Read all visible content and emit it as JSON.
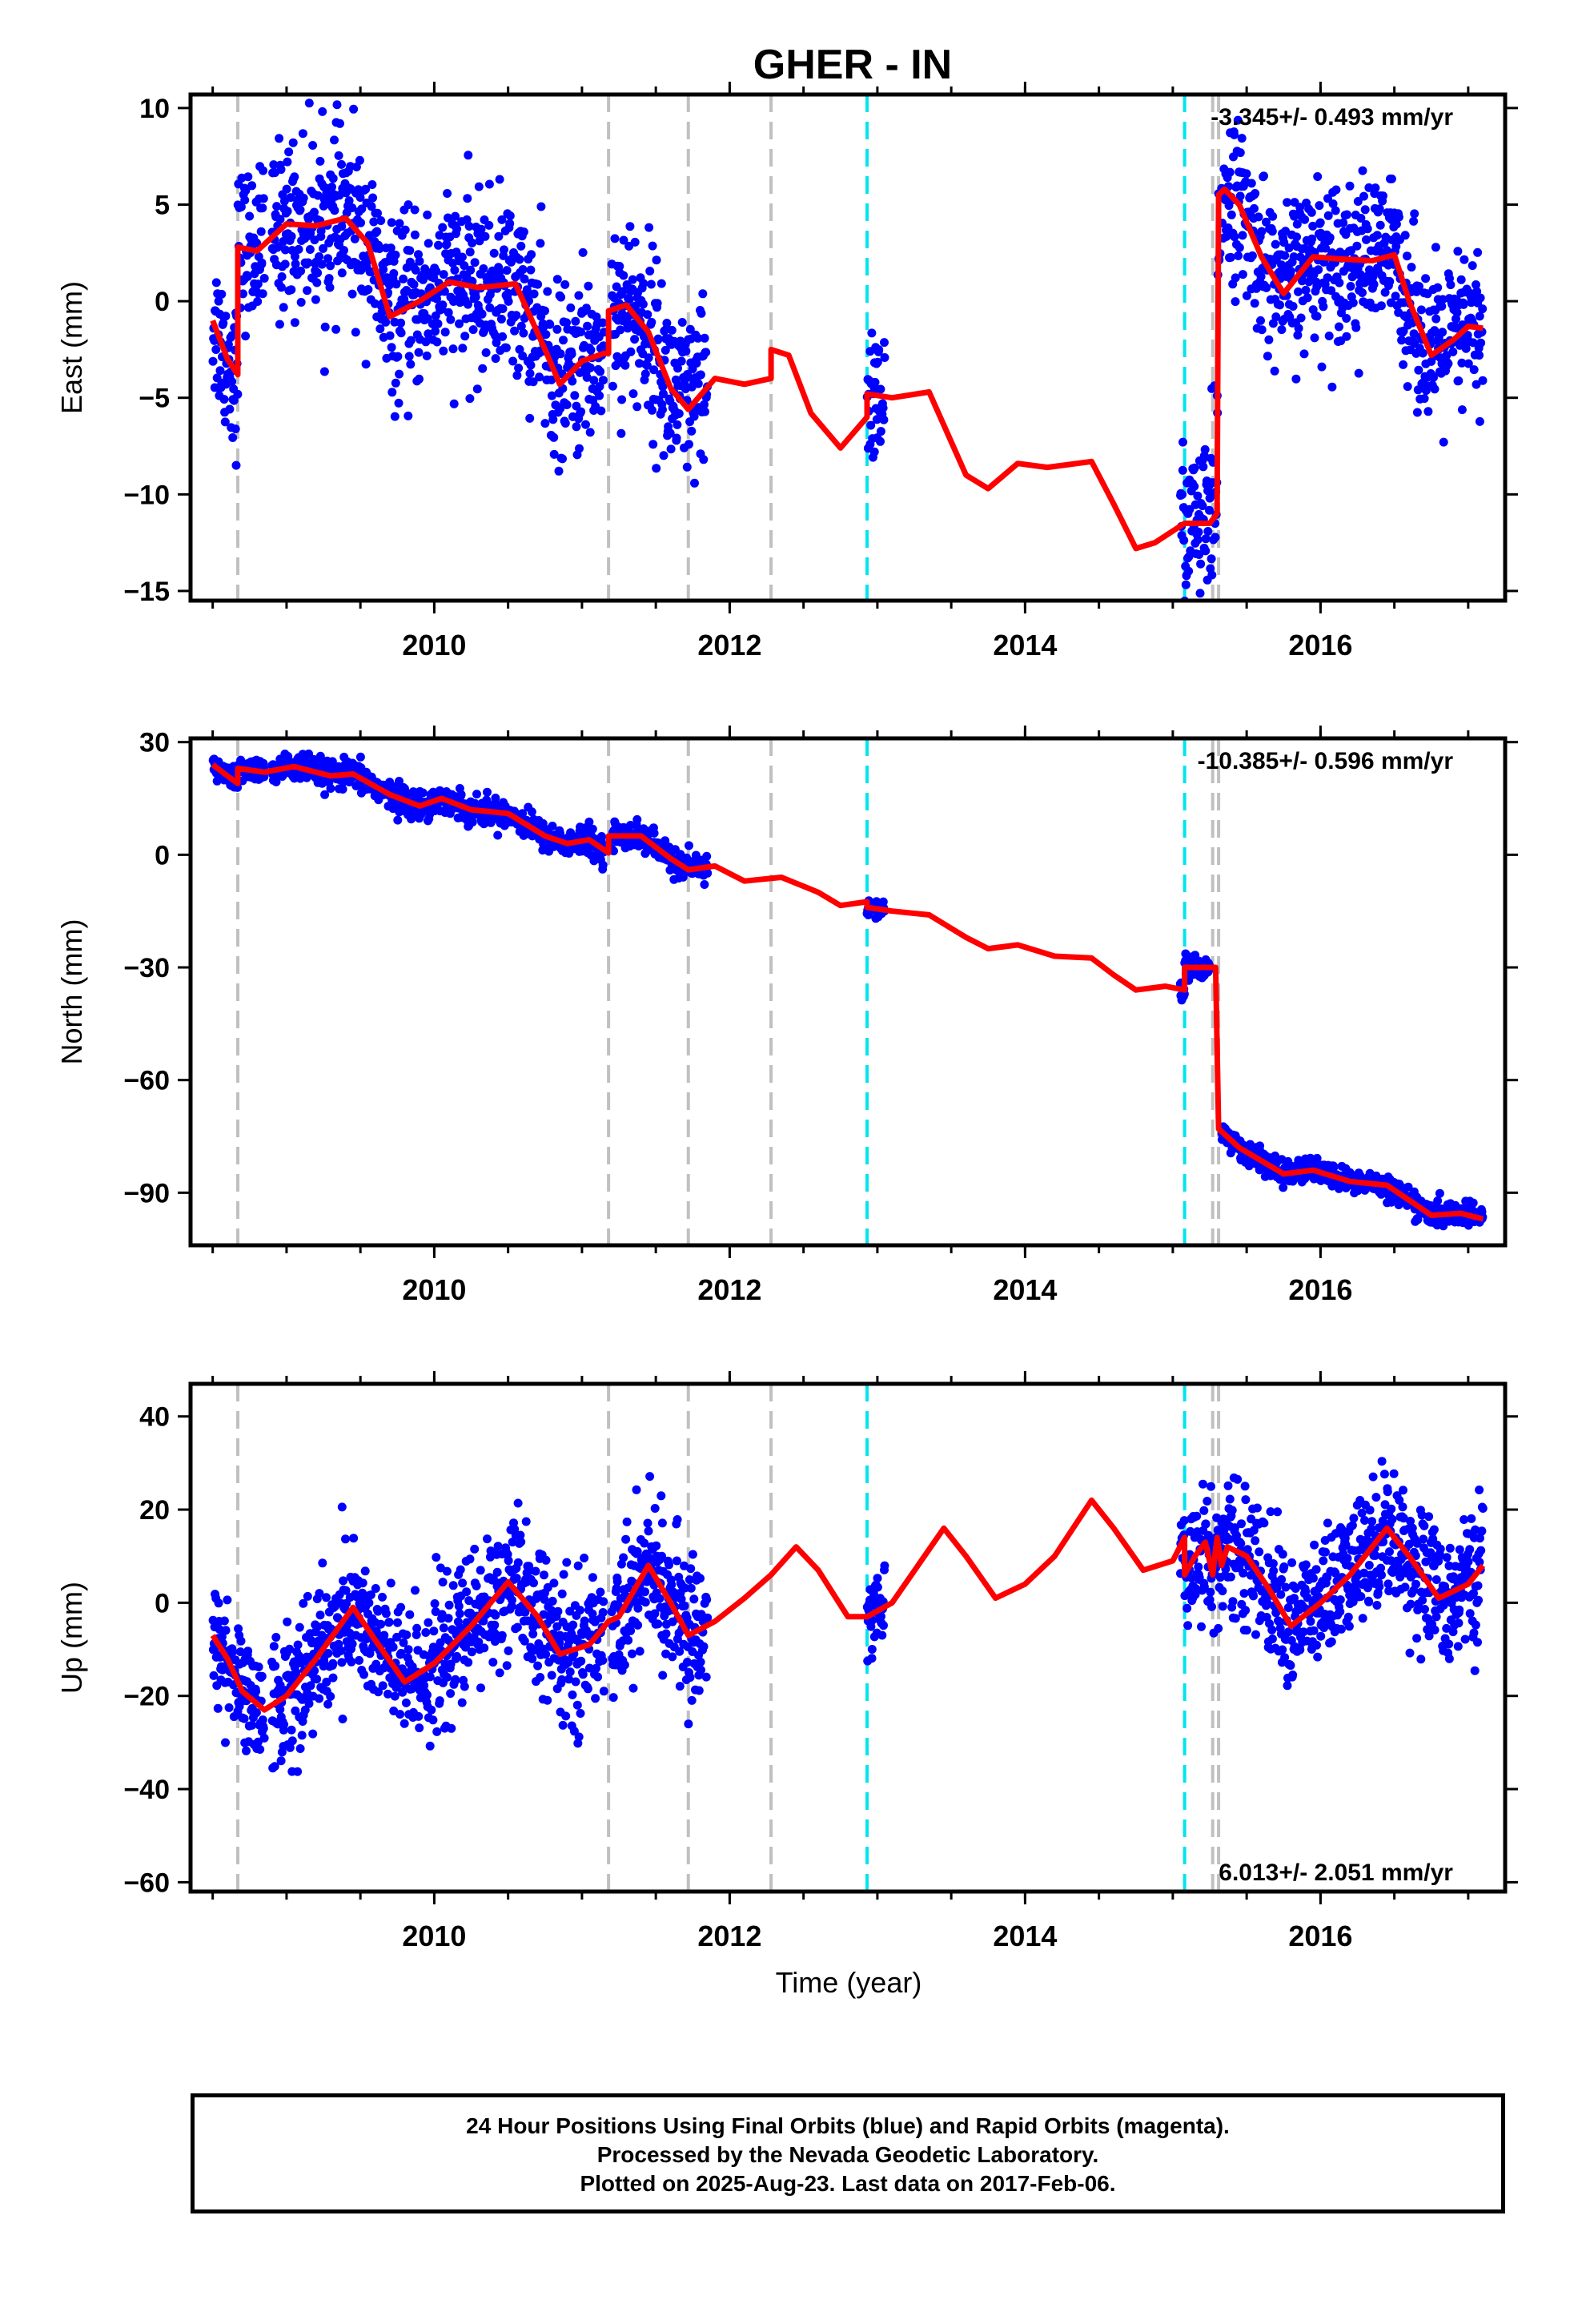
{
  "title": "GHER - IN",
  "xlabel": "Time (year)",
  "footer": {
    "line1": "24 Hour Positions Using Final Orbits (blue) and Rapid Orbits (magenta).",
    "line2": "Processed by the Nevada Geodetic Laboratory.",
    "line3": "Plotted on 2025-Aug-23. Last data on 2017-Feb-06."
  },
  "colors": {
    "points": "#0000ff",
    "model": "#ff0000",
    "equipment_change": "#c0c0c0",
    "earthquake": "#00e5ee"
  },
  "chart_data": [
    {
      "type": "scatter",
      "ylabel": "East (mm)",
      "rate_label": "-3.345+/- 0.493 mm/yr",
      "rate_position": "top-right",
      "xlim": [
        2008.35,
        2017.25
      ],
      "ylim": [
        -15.5,
        10.7
      ],
      "yticks": [
        10,
        5,
        0,
        -5,
        -10,
        -15
      ],
      "xticks": [
        2010,
        2012,
        2014,
        2016
      ],
      "model": [
        [
          2008.5,
          -1.0
        ],
        [
          2008.6,
          -3.0
        ],
        [
          2008.67,
          -3.8
        ],
        [
          2008.67,
          2.8
        ],
        [
          2008.8,
          2.6
        ],
        [
          2009.0,
          4.0
        ],
        [
          2009.2,
          3.9
        ],
        [
          2009.4,
          4.3
        ],
        [
          2009.55,
          3.0
        ],
        [
          2009.7,
          -0.8
        ],
        [
          2009.9,
          0.0
        ],
        [
          2010.1,
          1.0
        ],
        [
          2010.3,
          0.7
        ],
        [
          2010.55,
          0.9
        ],
        [
          2010.75,
          -2.5
        ],
        [
          2010.85,
          -4.3
        ],
        [
          2011.0,
          -3.1
        ],
        [
          2011.15,
          -2.7
        ],
        [
          2011.18,
          -2.7
        ],
        [
          2011.18,
          -0.5
        ],
        [
          2011.3,
          -0.2
        ],
        [
          2011.45,
          -1.6
        ],
        [
          2011.6,
          -4.5
        ],
        [
          2011.72,
          -5.6
        ],
        [
          2011.9,
          -4.0
        ],
        [
          2012.1,
          -4.3
        ],
        [
          2012.28,
          -4.0
        ],
        [
          2012.28,
          -2.5
        ],
        [
          2012.4,
          -2.8
        ],
        [
          2012.55,
          -5.8
        ],
        [
          2012.75,
          -7.6
        ],
        [
          2012.93,
          -6.0
        ],
        [
          2012.93,
          -4.8
        ],
        [
          2013.1,
          -5.0
        ],
        [
          2013.35,
          -4.7
        ],
        [
          2013.6,
          -9.0
        ],
        [
          2013.75,
          -9.7
        ],
        [
          2013.95,
          -8.4
        ],
        [
          2014.15,
          -8.6
        ],
        [
          2014.45,
          -8.3
        ],
        [
          2014.6,
          -10.5
        ],
        [
          2014.75,
          -12.8
        ],
        [
          2014.88,
          -12.5
        ],
        [
          2015.08,
          -11.5
        ],
        [
          2015.25,
          -11.5
        ],
        [
          2015.3,
          -11.0
        ],
        [
          2015.31,
          5.5
        ],
        [
          2015.35,
          5.8
        ],
        [
          2015.45,
          5.0
        ],
        [
          2015.6,
          2.3
        ],
        [
          2015.75,
          0.4
        ],
        [
          2015.95,
          2.3
        ],
        [
          2016.1,
          2.2
        ],
        [
          2016.35,
          2.1
        ],
        [
          2016.5,
          2.4
        ],
        [
          2016.6,
          0.0
        ],
        [
          2016.75,
          -2.8
        ],
        [
          2016.9,
          -2.0
        ],
        [
          2017.0,
          -1.3
        ],
        [
          2017.1,
          -1.4
        ]
      ],
      "segments": [
        [
          2008.5,
          2008.85,
          2.0
        ],
        [
          2008.9,
          2011.15,
          2.2
        ],
        [
          2011.2,
          2011.85,
          2.3
        ],
        [
          2012.93,
          2013.05,
          2.0
        ],
        [
          2015.05,
          2015.25,
          2.0
        ],
        [
          2015.25,
          2015.32,
          3.0
        ],
        [
          2015.33,
          2017.1,
          2.0
        ]
      ],
      "rapid_points": [],
      "equipment_changes": [
        2008.67,
        2011.18,
        2011.72,
        2012.28,
        2015.27,
        2015.31
      ],
      "earthquakes": [
        2012.93,
        2015.08
      ]
    },
    {
      "type": "scatter",
      "ylabel": "North (mm)",
      "rate_label": "-10.385+/- 0.596 mm/yr",
      "rate_position": "top-right",
      "xlim": [
        2008.35,
        2017.25
      ],
      "ylim": [
        -104,
        31
      ],
      "yticks": [
        30,
        0,
        -30,
        -60,
        -90
      ],
      "xticks": [
        2010,
        2012,
        2014,
        2016
      ],
      "model": [
        [
          2008.5,
          24.0
        ],
        [
          2008.6,
          21.0
        ],
        [
          2008.67,
          19.0
        ],
        [
          2008.67,
          23.0
        ],
        [
          2008.85,
          22.0
        ],
        [
          2009.05,
          23.5
        ],
        [
          2009.3,
          21.0
        ],
        [
          2009.45,
          21.5
        ],
        [
          2009.7,
          16.0
        ],
        [
          2009.9,
          13.0
        ],
        [
          2010.05,
          15.0
        ],
        [
          2010.25,
          12.0
        ],
        [
          2010.5,
          11.0
        ],
        [
          2010.75,
          5.0
        ],
        [
          2010.9,
          3.0
        ],
        [
          2011.05,
          4.0
        ],
        [
          2011.18,
          0.5
        ],
        [
          2011.18,
          5.0
        ],
        [
          2011.4,
          5.0
        ],
        [
          2011.6,
          -1.0
        ],
        [
          2011.72,
          -4.0
        ],
        [
          2011.9,
          -3.0
        ],
        [
          2012.1,
          -7.0
        ],
        [
          2012.35,
          -6.0
        ],
        [
          2012.6,
          -10.0
        ],
        [
          2012.75,
          -13.5
        ],
        [
          2012.93,
          -12.5
        ],
        [
          2012.93,
          -14.0
        ],
        [
          2013.1,
          -15.0
        ],
        [
          2013.35,
          -16.0
        ],
        [
          2013.6,
          -22.0
        ],
        [
          2013.75,
          -25.0
        ],
        [
          2013.95,
          -24.0
        ],
        [
          2014.2,
          -27.0
        ],
        [
          2014.45,
          -27.5
        ],
        [
          2014.6,
          -32.0
        ],
        [
          2014.75,
          -36.0
        ],
        [
          2014.95,
          -35.0
        ],
        [
          2015.08,
          -36.0
        ],
        [
          2015.08,
          -30.0
        ],
        [
          2015.25,
          -30.0
        ],
        [
          2015.29,
          -30.0
        ],
        [
          2015.31,
          -73.0
        ],
        [
          2015.45,
          -78.0
        ],
        [
          2015.75,
          -85.0
        ],
        [
          2015.95,
          -84.0
        ],
        [
          2016.2,
          -87.0
        ],
        [
          2016.45,
          -88.0
        ],
        [
          2016.6,
          -92.0
        ],
        [
          2016.75,
          -96.0
        ],
        [
          2016.95,
          -95.5
        ],
        [
          2017.1,
          -97.0
        ]
      ],
      "segments": [
        [
          2008.5,
          2008.85,
          1.5
        ],
        [
          2008.9,
          2011.15,
          1.8
        ],
        [
          2011.2,
          2011.85,
          1.8
        ],
        [
          2012.93,
          2013.05,
          1.2
        ],
        [
          2015.05,
          2015.25,
          1.6
        ],
        [
          2015.33,
          2017.1,
          1.5
        ]
      ],
      "rapid_points": [],
      "equipment_changes": [
        2008.67,
        2011.18,
        2011.72,
        2012.28,
        2015.27,
        2015.31
      ],
      "earthquakes": [
        2012.93,
        2015.08
      ]
    },
    {
      "type": "scatter",
      "ylabel": "Up (mm)",
      "rate_label": "6.013+/- 2.051 mm/yr",
      "rate_position": "bottom-right",
      "xlim": [
        2008.35,
        2017.25
      ],
      "ylim": [
        -62,
        47
      ],
      "yticks": [
        40,
        20,
        0,
        -20,
        -40,
        -60
      ],
      "xticks": [
        2010,
        2012,
        2014,
        2016
      ],
      "model": [
        [
          2008.5,
          -7.0
        ],
        [
          2008.6,
          -12.0
        ],
        [
          2008.7,
          -19.0
        ],
        [
          2008.85,
          -23.0
        ],
        [
          2009.0,
          -20.0
        ],
        [
          2009.2,
          -12.0
        ],
        [
          2009.45,
          -1.0
        ],
        [
          2009.6,
          -8.0
        ],
        [
          2009.8,
          -17.0
        ],
        [
          2010.0,
          -13.0
        ],
        [
          2010.25,
          -5.0
        ],
        [
          2010.5,
          4.5
        ],
        [
          2010.7,
          -3.0
        ],
        [
          2010.85,
          -11.0
        ],
        [
          2011.05,
          -9.0
        ],
        [
          2011.18,
          -4.0
        ],
        [
          2011.25,
          -3.0
        ],
        [
          2011.45,
          8.0
        ],
        [
          2011.6,
          0.0
        ],
        [
          2011.72,
          -7.0
        ],
        [
          2011.9,
          -4.0
        ],
        [
          2012.1,
          1.0
        ],
        [
          2012.28,
          6.0
        ],
        [
          2012.45,
          12.0
        ],
        [
          2012.6,
          7.0
        ],
        [
          2012.8,
          -3.0
        ],
        [
          2012.93,
          -3.0
        ],
        [
          2013.1,
          0.0
        ],
        [
          2013.45,
          16.0
        ],
        [
          2013.6,
          10.0
        ],
        [
          2013.8,
          1.0
        ],
        [
          2014.0,
          4.0
        ],
        [
          2014.2,
          10.0
        ],
        [
          2014.45,
          22.0
        ],
        [
          2014.6,
          16.0
        ],
        [
          2014.8,
          7.0
        ],
        [
          2015.0,
          9.0
        ],
        [
          2015.08,
          14.0
        ],
        [
          2015.08,
          6.0
        ],
        [
          2015.15,
          10.0
        ],
        [
          2015.22,
          13.0
        ],
        [
          2015.27,
          6.0
        ],
        [
          2015.3,
          14.0
        ],
        [
          2015.33,
          8.0
        ],
        [
          2015.37,
          12.0
        ],
        [
          2015.5,
          10.0
        ],
        [
          2015.65,
          3.0
        ],
        [
          2015.8,
          -5.0
        ],
        [
          2016.0,
          0.0
        ],
        [
          2016.2,
          6.0
        ],
        [
          2016.45,
          16.0
        ],
        [
          2016.6,
          10.0
        ],
        [
          2016.8,
          1.0
        ],
        [
          2017.0,
          4.0
        ],
        [
          2017.1,
          8.0
        ]
      ],
      "segments": [
        [
          2008.5,
          2008.85,
          6.0
        ],
        [
          2008.9,
          2011.15,
          7.5
        ],
        [
          2011.2,
          2011.85,
          7.5
        ],
        [
          2012.93,
          2013.05,
          4.5
        ],
        [
          2015.05,
          2017.1,
          7.0
        ]
      ],
      "rapid_points": [],
      "equipment_changes": [
        2008.67,
        2011.18,
        2011.72,
        2012.28,
        2015.27,
        2015.31
      ],
      "earthquakes": [
        2012.93,
        2015.08
      ]
    }
  ]
}
